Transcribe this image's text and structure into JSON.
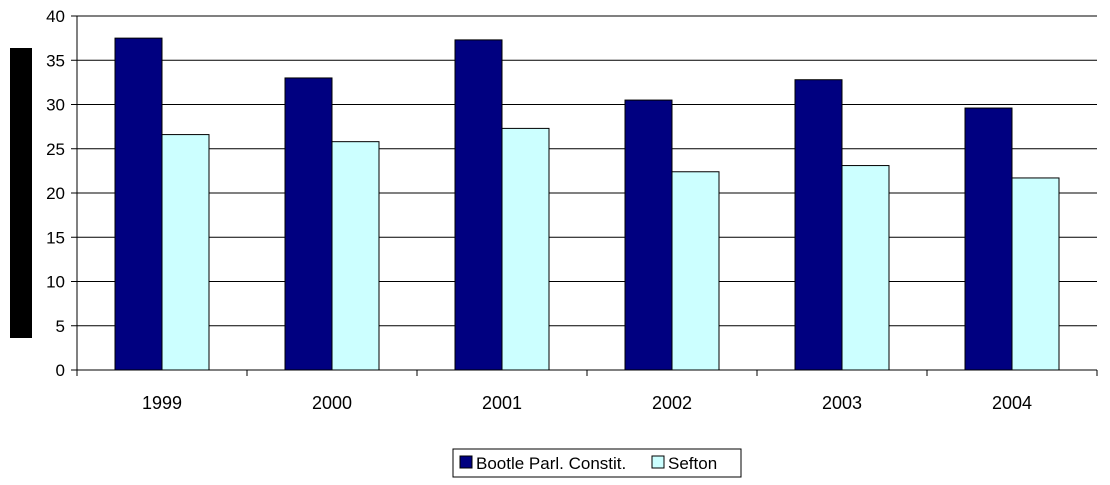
{
  "chart_data": {
    "type": "bar",
    "categories": [
      "1999",
      "2000",
      "2001",
      "2002",
      "2003",
      "2004"
    ],
    "series": [
      {
        "name": "Bootle Parl. Constit.",
        "color": "#000080",
        "values": [
          37.5,
          33.0,
          37.3,
          30.5,
          32.8,
          29.6
        ]
      },
      {
        "name": "Sefton",
        "color": "#CCFFFF",
        "values": [
          26.6,
          25.8,
          27.3,
          22.4,
          23.1,
          21.7
        ]
      }
    ],
    "title": "",
    "xlabel": "",
    "ylabel": "",
    "ylim": [
      0,
      40
    ],
    "yticks": [
      "0",
      "5",
      "10",
      "15",
      "20",
      "25",
      "30",
      "35",
      "40"
    ],
    "grid": true,
    "legend_position": "bottom"
  }
}
